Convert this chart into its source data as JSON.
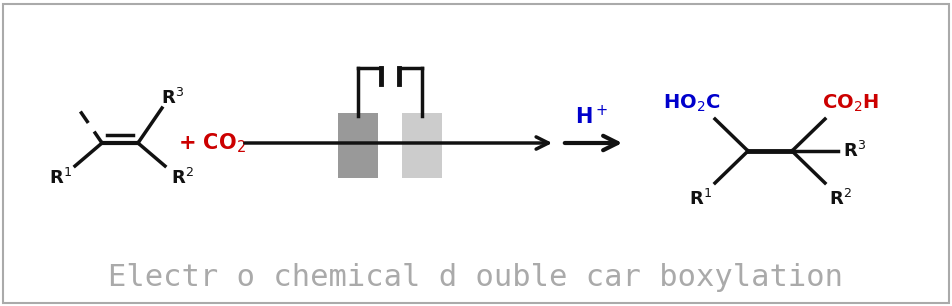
{
  "background_color": "#ffffff",
  "border_color": "#aaaaaa",
  "title_text": "Electr o chemical d ouble car boxylation",
  "title_color": "#aaaaaa",
  "title_fontsize": 22,
  "title_font": "monospace",
  "red_color": "#cc0000",
  "blue_color": "#0000cc",
  "black_color": "#111111",
  "electrode_dark_color": "#999999",
  "electrode_light_color": "#cccccc"
}
